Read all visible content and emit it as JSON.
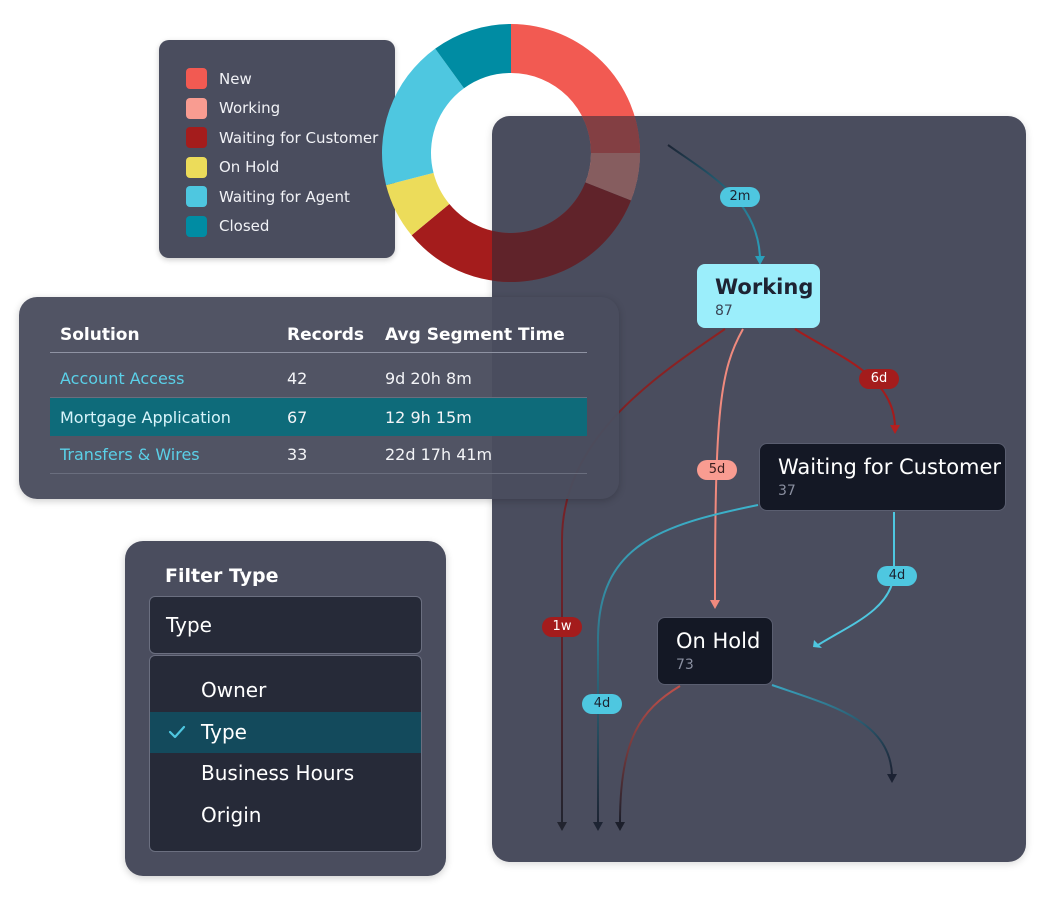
{
  "legend": {
    "items": [
      {
        "label": "New",
        "color": "#f25a52"
      },
      {
        "label": "Working",
        "color": "#f99c91"
      },
      {
        "label": "Waiting for Customer",
        "color": "#a41c1c"
      },
      {
        "label": "On Hold",
        "color": "#ecdc5a"
      },
      {
        "label": "Waiting for Agent",
        "color": "#4ec7e0"
      },
      {
        "label": "Closed",
        "color": "#008ca3"
      }
    ]
  },
  "donut": {
    "segments": [
      {
        "label": "New",
        "share": 0.25,
        "color": "#f25a52"
      },
      {
        "label": "Working",
        "share": 0.06,
        "color": "#f99c91"
      },
      {
        "label": "Waiting for Customer",
        "share": 0.33,
        "color": "#a41c1c"
      },
      {
        "label": "On Hold",
        "share": 0.07,
        "color": "#ecdc5a"
      },
      {
        "label": "Waiting for Agent",
        "share": 0.19,
        "color": "#4ec7e0"
      },
      {
        "label": "Closed",
        "share": 0.1,
        "color": "#008ca3"
      }
    ]
  },
  "table": {
    "headers": [
      "Solution",
      "Records",
      "Avg Segment Time"
    ],
    "rows": [
      {
        "solution": "Account Access",
        "records": "42",
        "avg": "9d 20h 8m"
      },
      {
        "solution": "Mortgage Application",
        "records": "67",
        "avg": "12 9h 15m"
      },
      {
        "solution": "Transfers & Wires",
        "records": "33",
        "avg": "22d 17h 41m"
      }
    ],
    "selected_row": 1
  },
  "filter": {
    "title": "Filter Type",
    "selected_value": "Type",
    "options": [
      "Owner",
      "Type",
      "Business Hours",
      "Origin"
    ],
    "selected_index": 1
  },
  "flow": {
    "nodes": {
      "working": {
        "title": "Working",
        "count": "87"
      },
      "waiting": {
        "title": "Waiting for Customer",
        "count": "37"
      },
      "onhold": {
        "title": "On Hold",
        "count": "73"
      }
    },
    "edges": [
      {
        "label": "2m",
        "color": "#4ec7e0"
      },
      {
        "label": "6d",
        "color": "#a41c1c"
      },
      {
        "label": "5d",
        "color": "#f99c91"
      },
      {
        "label": "1w",
        "color": "#a41c1c"
      },
      {
        "label": "4d",
        "color": "#4ec7e0"
      },
      {
        "label": "4d",
        "color": "#4ec7e0"
      }
    ]
  }
}
